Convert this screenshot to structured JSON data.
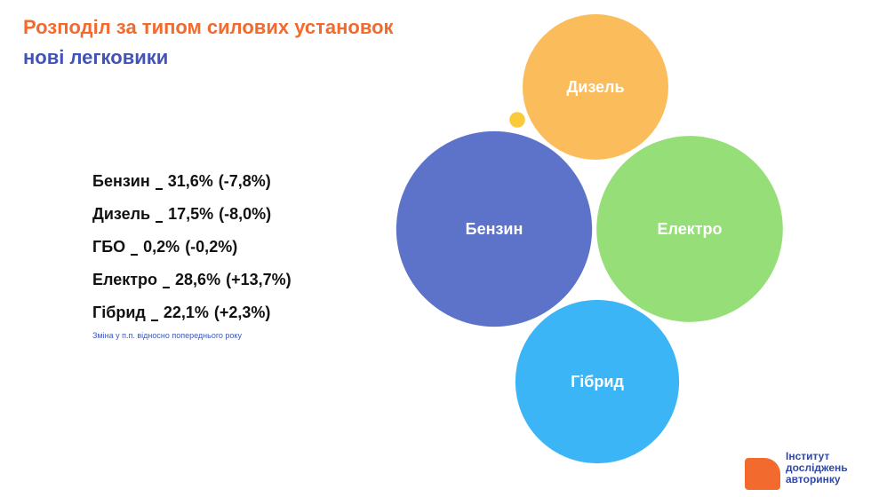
{
  "chart_data": {
    "type": "bubble",
    "title": "Розподіл за типом силових установок",
    "subtitle": "нові легковики",
    "categories": [
      "Бензин",
      "Дизель",
      "ГБО",
      "Електро",
      "Гібрид"
    ],
    "values": [
      31.6,
      17.5,
      0.2,
      28.6,
      22.1
    ],
    "value_labels": [
      "31,6%",
      "17,5%",
      "0,2%",
      "28,6%",
      "22,1%"
    ],
    "changes": [
      -7.8,
      -8.0,
      -0.2,
      13.7,
      2.3
    ],
    "change_labels": [
      "(-7,8%)",
      "(-8,0%)",
      "(-0,2%)",
      "(+13,7%)",
      "(+2,3%)"
    ],
    "bubble_labels": [
      "Бензин",
      "Дизель",
      null,
      "Електро",
      "Гібрид"
    ],
    "colors": [
      "#5d73c9",
      "#fbbd5c",
      "#fbc93c",
      "#95de78",
      "#3cb5f7"
    ],
    "note": "Зміна у п.п. відносно попереднього року"
  },
  "logo": {
    "line1": "Інститут",
    "line2": "досліджень",
    "line3": "авторинку"
  }
}
